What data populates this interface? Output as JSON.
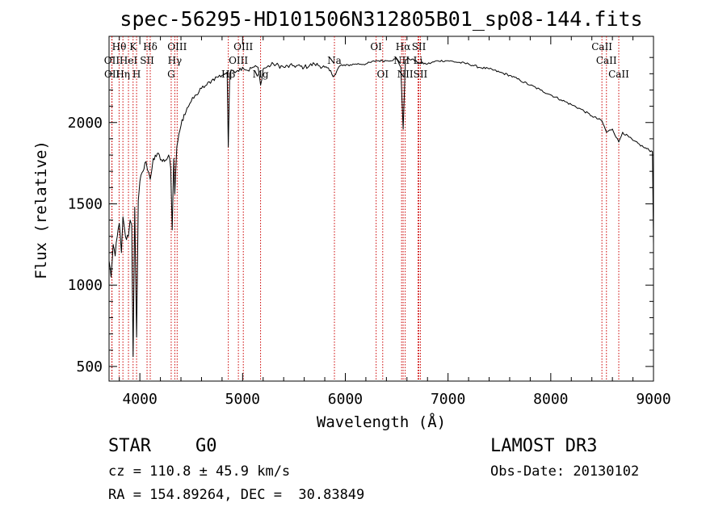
{
  "chart_data": {
    "type": "line",
    "title": "spec-56295-HD101506N312805B01_sp08-144.fits",
    "xlabel": "Wavelength (Å)",
    "ylabel": "Flux (relative)",
    "xlim": [
      3700,
      9000
    ],
    "ylim": [
      410,
      2530
    ],
    "x_ticks": [
      4000,
      5000,
      6000,
      7000,
      8000,
      9000
    ],
    "y_ticks": [
      500,
      1000,
      1500,
      2000
    ],
    "series": [
      {
        "name": "flux",
        "x": [
          3700,
          3720,
          3740,
          3760,
          3780,
          3800,
          3820,
          3835,
          3850,
          3870,
          3889,
          3905,
          3920,
          3934,
          3950,
          3968,
          3985,
          4000,
          4030,
          4060,
          4101,
          4130,
          4160,
          4190,
          4220,
          4250,
          4280,
          4300,
          4315,
          4330,
          4340,
          4360,
          4380,
          4400,
          4430,
          4460,
          4500,
          4550,
          4600,
          4650,
          4700,
          4750,
          4800,
          4850,
          4861,
          4875,
          4900,
          4950,
          5000,
          5050,
          5100,
          5150,
          5175,
          5200,
          5300,
          5400,
          5500,
          5600,
          5700,
          5800,
          5893,
          5950,
          6000,
          6100,
          6200,
          6300,
          6400,
          6500,
          6540,
          6563,
          6585,
          6600,
          6650,
          6700,
          6800,
          6900,
          7000,
          7100,
          7200,
          7300,
          7400,
          7500,
          7600,
          7700,
          7800,
          7900,
          8000,
          8100,
          8200,
          8300,
          8400,
          8498,
          8542,
          8600,
          8662,
          8700,
          8800,
          8900,
          8990,
          9000
        ],
        "y": [
          1150,
          1050,
          1250,
          1180,
          1300,
          1380,
          1200,
          1420,
          1350,
          1280,
          1300,
          1400,
          1370,
          560,
          1480,
          680,
          1520,
          1640,
          1700,
          1760,
          1650,
          1780,
          1790,
          1800,
          1760,
          1770,
          1800,
          1720,
          1340,
          1780,
          1560,
          1850,
          1930,
          1980,
          2050,
          2090,
          2130,
          2170,
          2210,
          2230,
          2260,
          2280,
          2290,
          2310,
          1850,
          2300,
          2320,
          2320,
          2340,
          2320,
          2340,
          2340,
          2230,
          2330,
          2360,
          2340,
          2350,
          2340,
          2360,
          2340,
          2290,
          2350,
          2350,
          2360,
          2360,
          2380,
          2380,
          2390,
          2340,
          1960,
          2380,
          2390,
          2390,
          2370,
          2360,
          2380,
          2380,
          2370,
          2360,
          2340,
          2330,
          2310,
          2290,
          2260,
          2230,
          2200,
          2170,
          2140,
          2110,
          2080,
          2040,
          2010,
          1940,
          1960,
          1880,
          1940,
          1890,
          1850,
          1820,
          1250
        ]
      }
    ],
    "lines": [
      {
        "label": "Hθ",
        "x": 3798,
        "row": 0
      },
      {
        "label": "OII",
        "x": 3727,
        "row": 1
      },
      {
        "label": "OII",
        "x": 3729,
        "row": 2
      },
      {
        "label": "Hη",
        "x": 3835,
        "row": 2
      },
      {
        "label": "K",
        "x": 3934,
        "row": 0
      },
      {
        "label": "HeI",
        "x": 3889,
        "row": 1
      },
      {
        "label": "H",
        "x": 3968,
        "row": 2
      },
      {
        "label": "SII",
        "x": 4070,
        "row": 1
      },
      {
        "label": "Hδ",
        "x": 4101,
        "row": 0
      },
      {
        "label": "OIII",
        "x": 4363,
        "row": 0
      },
      {
        "label": "Hγ",
        "x": 4340,
        "row": 1
      },
      {
        "label": "G",
        "x": 4305,
        "row": 2
      },
      {
        "label": "Hβ",
        "x": 4861,
        "row": 2
      },
      {
        "label": "OIII",
        "x": 5007,
        "row": 0
      },
      {
        "label": "OIII",
        "x": 4959,
        "row": 1
      },
      {
        "label": "Mg",
        "x": 5175,
        "row": 2
      },
      {
        "label": "Na",
        "x": 5894,
        "row": 1
      },
      {
        "label": "OI",
        "x": 6300,
        "row": 0
      },
      {
        "label": "OI",
        "x": 6364,
        "row": 2
      },
      {
        "label": "Hα",
        "x": 6563,
        "row": 0
      },
      {
        "label": "NII",
        "x": 6548,
        "row": 1
      },
      {
        "label": "NII",
        "x": 6583,
        "row": 2
      },
      {
        "label": "SII",
        "x": 6716,
        "row": 0
      },
      {
        "label": "SII",
        "x": 6731,
        "row": 2
      },
      {
        "label": "Li",
        "x": 6708,
        "row": 1
      },
      {
        "label": "CaII",
        "x": 8498,
        "row": 0
      },
      {
        "label": "CaII",
        "x": 8542,
        "row": 1
      },
      {
        "label": "CaII",
        "x": 8662,
        "row": 2
      }
    ]
  },
  "footer": {
    "class_label": "STAR",
    "subclass": "G0",
    "survey": "LAMOST DR3",
    "redshift_text": "cz = 110.8 ± 45.9 km/s",
    "obs_date_text": "Obs-Date: 20130102",
    "coords_text": "RA = 154.89264, DEC =  30.83849"
  },
  "colors": {
    "spectrum": "#000000",
    "line_markers": "#cc0000",
    "axis": "#000000"
  }
}
